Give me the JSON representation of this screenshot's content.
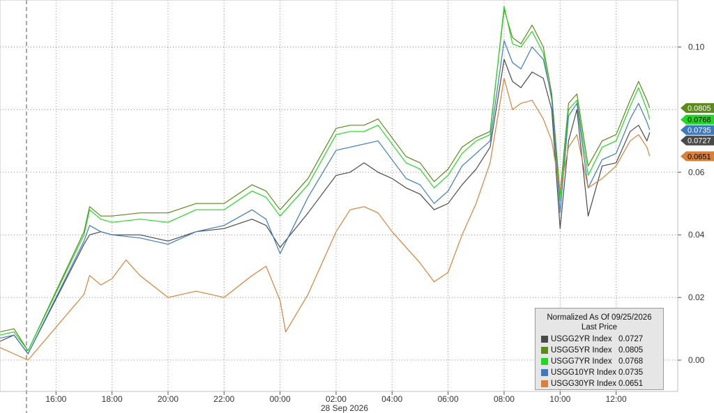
{
  "chart_data": {
    "type": "line",
    "y_ticks": [
      "0.10",
      "0.06",
      "0.04",
      "0.02",
      "0.00"
    ],
    "y_tick_values": [
      0.1,
      0.06,
      0.04,
      0.02,
      0.0
    ],
    "ylim": [
      -0.01,
      0.115
    ],
    "x_ticks": [
      "16:00",
      "18:00",
      "20:00",
      "22:00",
      "00:00",
      "02:00",
      "04:00",
      "06:00",
      "08:00",
      "10:00",
      "12:00"
    ],
    "x_tick_hours": [
      16,
      18,
      20,
      22,
      24,
      26,
      28,
      30,
      32,
      34,
      36
    ],
    "xlim": [
      14,
      38.2
    ],
    "x_sublabel": "28 Sep 2026",
    "grid": true,
    "legend": {
      "title": "Normalized As Of 09/25/2026",
      "subtitle": "Last Price",
      "placement": "bottom-right"
    },
    "series": [
      {
        "name": "USGG2YR Index",
        "last": "0.0727",
        "color": "#4a4a4a",
        "points": [
          [
            14,
            0.006
          ],
          [
            14.5,
            0.008
          ],
          [
            15,
            0.002
          ],
          [
            17,
            0.037
          ],
          [
            17.2,
            0.04
          ],
          [
            17.6,
            0.041
          ],
          [
            18,
            0.04
          ],
          [
            19,
            0.04
          ],
          [
            20,
            0.038
          ],
          [
            21,
            0.041
          ],
          [
            22,
            0.042
          ],
          [
            23,
            0.045
          ],
          [
            23.5,
            0.043
          ],
          [
            24,
            0.036
          ],
          [
            25,
            0.047
          ],
          [
            26,
            0.059
          ],
          [
            26.5,
            0.06
          ],
          [
            27,
            0.063
          ],
          [
            27.5,
            0.06
          ],
          [
            28,
            0.058
          ],
          [
            28.5,
            0.055
          ],
          [
            29,
            0.053
          ],
          [
            29.5,
            0.048
          ],
          [
            30,
            0.05
          ],
          [
            30.5,
            0.056
          ],
          [
            31,
            0.061
          ],
          [
            31.5,
            0.068
          ],
          [
            32,
            0.096
          ],
          [
            32.3,
            0.089
          ],
          [
            32.6,
            0.087
          ],
          [
            33,
            0.092
          ],
          [
            33.4,
            0.09
          ],
          [
            33.7,
            0.08
          ],
          [
            34,
            0.042
          ],
          [
            34.3,
            0.07
          ],
          [
            34.6,
            0.08
          ],
          [
            35,
            0.046
          ],
          [
            35.5,
            0.062
          ],
          [
            36,
            0.063
          ],
          [
            36.5,
            0.073
          ],
          [
            36.8,
            0.075
          ],
          [
            37.1,
            0.07
          ],
          [
            37.2,
            0.0727
          ]
        ]
      },
      {
        "name": "USGG5YR Index",
        "last": "0.0805",
        "color": "#5a8a1a",
        "points": [
          [
            14,
            0.009
          ],
          [
            14.5,
            0.01
          ],
          [
            15,
            0.003
          ],
          [
            17,
            0.041
          ],
          [
            17.2,
            0.049
          ],
          [
            17.6,
            0.046
          ],
          [
            18,
            0.046
          ],
          [
            19,
            0.047
          ],
          [
            20,
            0.047
          ],
          [
            21,
            0.05
          ],
          [
            22,
            0.05
          ],
          [
            23,
            0.056
          ],
          [
            23.5,
            0.054
          ],
          [
            24,
            0.048
          ],
          [
            25,
            0.058
          ],
          [
            26,
            0.074
          ],
          [
            26.5,
            0.075
          ],
          [
            27,
            0.075
          ],
          [
            27.5,
            0.077
          ],
          [
            28,
            0.071
          ],
          [
            28.5,
            0.065
          ],
          [
            29,
            0.063
          ],
          [
            29.5,
            0.057
          ],
          [
            30,
            0.061
          ],
          [
            30.5,
            0.068
          ],
          [
            31,
            0.071
          ],
          [
            31.5,
            0.073
          ],
          [
            32,
            0.112
          ],
          [
            32.3,
            0.103
          ],
          [
            32.6,
            0.101
          ],
          [
            33,
            0.107
          ],
          [
            33.4,
            0.1
          ],
          [
            33.7,
            0.085
          ],
          [
            34,
            0.053
          ],
          [
            34.3,
            0.082
          ],
          [
            34.6,
            0.085
          ],
          [
            35,
            0.062
          ],
          [
            35.5,
            0.07
          ],
          [
            36,
            0.072
          ],
          [
            36.5,
            0.083
          ],
          [
            36.8,
            0.089
          ],
          [
            37.1,
            0.083
          ],
          [
            37.2,
            0.0805
          ]
        ]
      },
      {
        "name": "USGG7YR Index",
        "last": "0.0768",
        "color": "#22d922",
        "points": [
          [
            14,
            0.008
          ],
          [
            14.5,
            0.009
          ],
          [
            15,
            0.003
          ],
          [
            17,
            0.04
          ],
          [
            17.2,
            0.048
          ],
          [
            17.6,
            0.045
          ],
          [
            18,
            0.044
          ],
          [
            19,
            0.045
          ],
          [
            20,
            0.044
          ],
          [
            21,
            0.048
          ],
          [
            22,
            0.048
          ],
          [
            23,
            0.054
          ],
          [
            23.5,
            0.052
          ],
          [
            24,
            0.046
          ],
          [
            25,
            0.056
          ],
          [
            26,
            0.072
          ],
          [
            26.5,
            0.073
          ],
          [
            27,
            0.073
          ],
          [
            27.5,
            0.075
          ],
          [
            28,
            0.069
          ],
          [
            28.5,
            0.063
          ],
          [
            29,
            0.061
          ],
          [
            29.5,
            0.055
          ],
          [
            30,
            0.059
          ],
          [
            30.5,
            0.066
          ],
          [
            31,
            0.07
          ],
          [
            31.5,
            0.072
          ],
          [
            32,
            0.113
          ],
          [
            32.3,
            0.101
          ],
          [
            32.6,
            0.1
          ],
          [
            33,
            0.105
          ],
          [
            33.4,
            0.098
          ],
          [
            33.7,
            0.083
          ],
          [
            34,
            0.051
          ],
          [
            34.3,
            0.08
          ],
          [
            34.6,
            0.083
          ],
          [
            35,
            0.059
          ],
          [
            35.5,
            0.068
          ],
          [
            36,
            0.07
          ],
          [
            36.5,
            0.081
          ],
          [
            36.8,
            0.087
          ],
          [
            37.1,
            0.08
          ],
          [
            37.2,
            0.0768
          ]
        ]
      },
      {
        "name": "USGG10YR Index",
        "last": "0.0735",
        "color": "#3d7abf",
        "points": [
          [
            14,
            0.007
          ],
          [
            14.5,
            0.008
          ],
          [
            15,
            0.002
          ],
          [
            17,
            0.038
          ],
          [
            17.2,
            0.043
          ],
          [
            17.6,
            0.041
          ],
          [
            18,
            0.04
          ],
          [
            19,
            0.039
          ],
          [
            20,
            0.037
          ],
          [
            21,
            0.041
          ],
          [
            22,
            0.043
          ],
          [
            23,
            0.048
          ],
          [
            23.5,
            0.045
          ],
          [
            24,
            0.034
          ],
          [
            25,
            0.052
          ],
          [
            26,
            0.067
          ],
          [
            26.5,
            0.068
          ],
          [
            27,
            0.069
          ],
          [
            27.5,
            0.07
          ],
          [
            28,
            0.064
          ],
          [
            28.5,
            0.058
          ],
          [
            29,
            0.056
          ],
          [
            29.5,
            0.05
          ],
          [
            30,
            0.054
          ],
          [
            30.5,
            0.062
          ],
          [
            31,
            0.066
          ],
          [
            31.5,
            0.07
          ],
          [
            32,
            0.102
          ],
          [
            32.3,
            0.095
          ],
          [
            32.6,
            0.093
          ],
          [
            33,
            0.1
          ],
          [
            33.4,
            0.096
          ],
          [
            33.7,
            0.084
          ],
          [
            34,
            0.047
          ],
          [
            34.3,
            0.078
          ],
          [
            34.6,
            0.082
          ],
          [
            35,
            0.055
          ],
          [
            35.5,
            0.064
          ],
          [
            36,
            0.066
          ],
          [
            36.5,
            0.077
          ],
          [
            36.8,
            0.082
          ],
          [
            37.1,
            0.076
          ],
          [
            37.2,
            0.0735
          ]
        ]
      },
      {
        "name": "USGG30YR Index",
        "last": "0.0651",
        "color": "#d9803a",
        "points": [
          [
            14,
            0.004
          ],
          [
            14.5,
            0.002
          ],
          [
            15,
            0.0
          ],
          [
            17,
            0.021
          ],
          [
            17.2,
            0.027
          ],
          [
            17.6,
            0.024
          ],
          [
            18,
            0.026
          ],
          [
            18.5,
            0.032
          ],
          [
            19,
            0.027
          ],
          [
            20,
            0.02
          ],
          [
            21,
            0.022
          ],
          [
            22,
            0.02
          ],
          [
            23,
            0.027
          ],
          [
            23.5,
            0.03
          ],
          [
            24,
            0.019
          ],
          [
            24.2,
            0.009
          ],
          [
            25,
            0.021
          ],
          [
            26,
            0.041
          ],
          [
            26.5,
            0.048
          ],
          [
            27,
            0.049
          ],
          [
            27.5,
            0.047
          ],
          [
            28,
            0.041
          ],
          [
            28.5,
            0.036
          ],
          [
            29,
            0.031
          ],
          [
            29.5,
            0.025
          ],
          [
            30,
            0.028
          ],
          [
            30.5,
            0.04
          ],
          [
            31,
            0.05
          ],
          [
            31.5,
            0.063
          ],
          [
            32,
            0.09
          ],
          [
            32.3,
            0.08
          ],
          [
            32.6,
            0.082
          ],
          [
            33,
            0.083
          ],
          [
            33.4,
            0.077
          ],
          [
            33.7,
            0.07
          ],
          [
            34,
            0.054
          ],
          [
            34.3,
            0.068
          ],
          [
            34.6,
            0.072
          ],
          [
            35,
            0.055
          ],
          [
            35.5,
            0.058
          ],
          [
            36,
            0.062
          ],
          [
            36.5,
            0.07
          ],
          [
            36.8,
            0.072
          ],
          [
            37.1,
            0.068
          ],
          [
            37.2,
            0.0651
          ]
        ]
      }
    ]
  }
}
